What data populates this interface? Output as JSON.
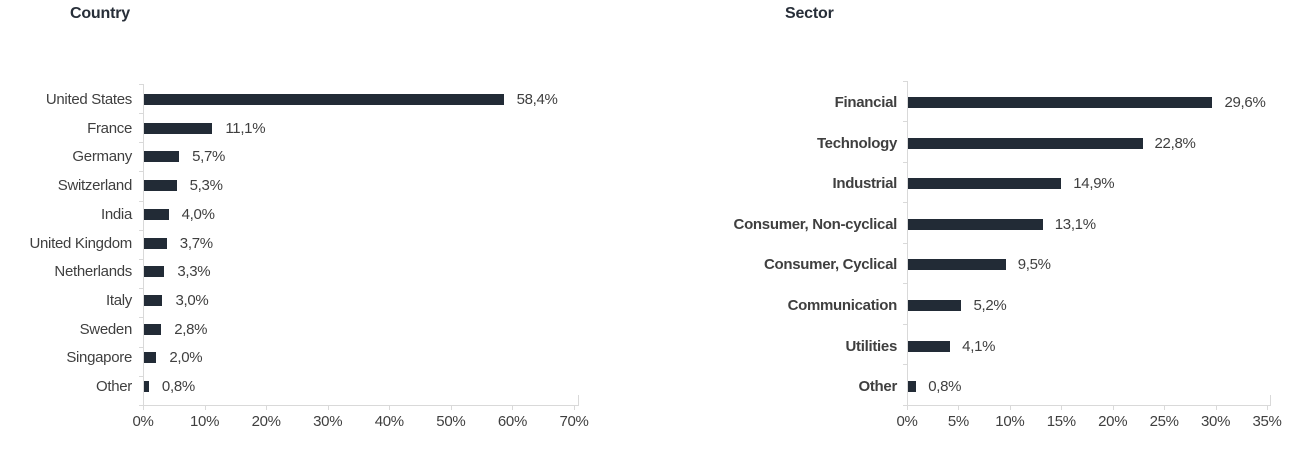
{
  "colors": {
    "bar": "#222b36",
    "title_text": "#272e38",
    "label_text": "#3f3f3f",
    "axis_line": "#d9d9d9"
  },
  "chart_data": [
    {
      "type": "bar",
      "orientation": "horizontal",
      "title": "Country",
      "categories": [
        "United States",
        "France",
        "Germany",
        "Switzerland",
        "India",
        "United Kingdom",
        "Netherlands",
        "Italy",
        "Sweden",
        "Singapore",
        "Other"
      ],
      "values": [
        58.4,
        11.1,
        5.7,
        5.3,
        4.0,
        3.7,
        3.3,
        3.0,
        2.8,
        2.0,
        0.8
      ],
      "value_labels": [
        "58,4%",
        "11,1%",
        "5,7%",
        "5,3%",
        "4,0%",
        "3,7%",
        "3,3%",
        "3,0%",
        "2,8%",
        "2,0%",
        "0,8%"
      ],
      "xlim": [
        0,
        70
      ],
      "tick_labels": [
        "0%",
        "10%",
        "20%",
        "30%",
        "40%",
        "50%",
        "60%",
        "70%"
      ],
      "grid": "off",
      "legend": "none",
      "category_labels_bold": false
    },
    {
      "type": "bar",
      "orientation": "horizontal",
      "title": "Sector",
      "categories": [
        "Financial",
        "Technology",
        "Industrial",
        "Consumer, Non-cyclical",
        "Consumer, Cyclical",
        "Communication",
        "Utilities",
        "Other"
      ],
      "values": [
        29.6,
        22.8,
        14.9,
        13.1,
        9.5,
        5.2,
        4.1,
        0.8
      ],
      "value_labels": [
        "29,6%",
        "22,8%",
        "14,9%",
        "13,1%",
        "9,5%",
        "5,2%",
        "4,1%",
        "0,8%"
      ],
      "xlim": [
        0,
        35
      ],
      "tick_labels": [
        "0%",
        "5%",
        "10%",
        "15%",
        "20%",
        "25%",
        "30%",
        "35%"
      ],
      "grid": "off",
      "legend": "none",
      "category_labels_bold": true
    }
  ]
}
